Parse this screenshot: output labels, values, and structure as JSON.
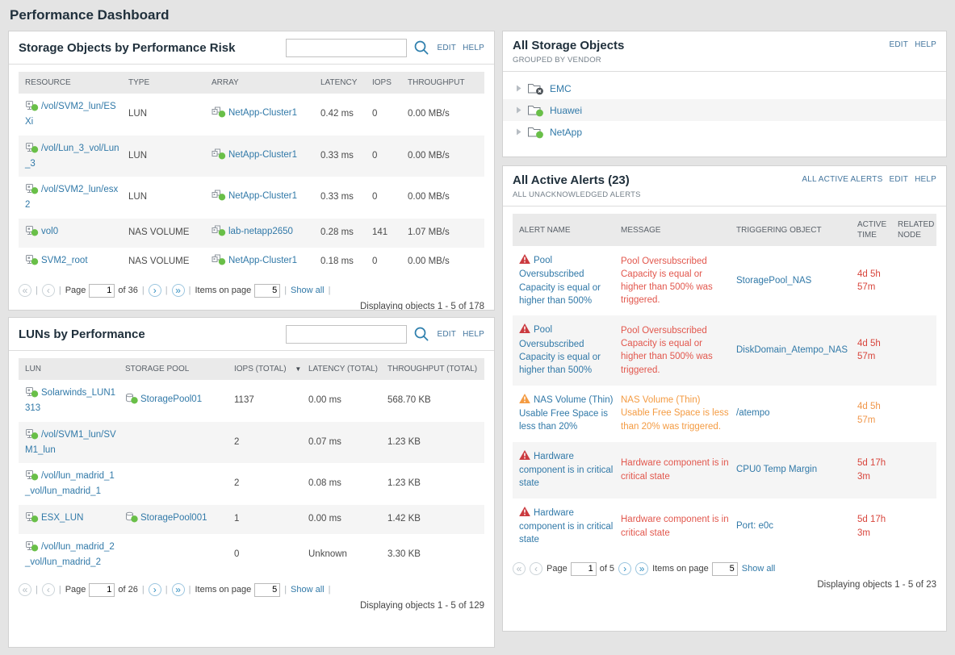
{
  "page": {
    "title": "Performance Dashboard"
  },
  "colors": {
    "up": "#69bf48",
    "down": "#4b5157",
    "critical_icon": "#cb3a3f",
    "warning_icon": "#f49b42",
    "critical_text": "#e2574d",
    "warning_text": "#f49b42",
    "critical_time": "#d8453c",
    "warning_time": "#f0964a",
    "link": "#3179a8"
  },
  "pager_icons": {
    "first": "«",
    "prev": "‹",
    "next": "›",
    "last": "»"
  },
  "panels": {
    "risk": {
      "title": "Storage Objects by Performance Risk",
      "edit": "EDIT",
      "help": "HELP",
      "search_value": "",
      "columns": [
        "RESOURCE",
        "TYPE",
        "ARRAY",
        "LATENCY",
        "IOPS",
        "THROUGHPUT"
      ],
      "rows": [
        {
          "resource": "/vol/SVM2_lun/ESXi",
          "type": "LUN",
          "array": "NetApp-Cluster1",
          "latency": "0.42 ms",
          "iops": "0",
          "throughput": "0.00 MB/s"
        },
        {
          "resource": "/vol/Lun_3_vol/Lun_3",
          "type": "LUN",
          "array": "NetApp-Cluster1",
          "latency": "0.33 ms",
          "iops": "0",
          "throughput": "0.00 MB/s"
        },
        {
          "resource": "/vol/SVM2_lun/esx2",
          "type": "LUN",
          "array": "NetApp-Cluster1",
          "latency": "0.33 ms",
          "iops": "0",
          "throughput": "0.00 MB/s"
        },
        {
          "resource": "vol0",
          "type": "NAS VOLUME",
          "array": "lab-netapp2650",
          "latency": "0.28 ms",
          "iops": "141",
          "throughput": "1.07 MB/s"
        },
        {
          "resource": "SVM2_root",
          "type": "NAS VOLUME",
          "array": "NetApp-Cluster1",
          "latency": "0.18 ms",
          "iops": "0",
          "throughput": "0.00 MB/s"
        }
      ],
      "pager": {
        "sep": "|",
        "piped": true,
        "page_label": "Page",
        "page_value": "1",
        "of_label": "of 36",
        "items_label": "Items on page",
        "items_value": "5",
        "show_all": "Show all"
      },
      "displaying": "Displaying objects 1 - 5 of 178"
    },
    "luns": {
      "title": "LUNs by Performance",
      "edit": "EDIT",
      "help": "HELP",
      "search_value": "",
      "columns": [
        "LUN",
        "STORAGE POOL",
        "IOPS (TOTAL)",
        "LATENCY (TOTAL)",
        "THROUGHPUT (TOTAL)"
      ],
      "sort_arrow": "▼",
      "rows": [
        {
          "lun": "Solarwinds_LUN1313",
          "pool": "StoragePool01",
          "iops": "1137",
          "latency": "0.00 ms",
          "throughput": "568.70 KB"
        },
        {
          "lun": "/vol/SVM1_lun/SVM1_lun",
          "pool": "",
          "iops": "2",
          "latency": "0.07 ms",
          "throughput": "1.23 KB"
        },
        {
          "lun": "/vol/lun_madrid_1_vol/lun_madrid_1",
          "pool": "",
          "iops": "2",
          "latency": "0.08 ms",
          "throughput": "1.23 KB"
        },
        {
          "lun": "ESX_LUN",
          "pool": "StoragePool001",
          "iops": "1",
          "latency": "0.00 ms",
          "throughput": "1.42 KB"
        },
        {
          "lun": "/vol/lun_madrid_2_vol/lun_madrid_2",
          "pool": "",
          "iops": "0",
          "latency": "Unknown",
          "throughput": "3.30 KB"
        }
      ],
      "pager": {
        "sep": "|",
        "piped": true,
        "page_label": "Page",
        "page_value": "1",
        "of_label": "of 26",
        "items_label": "Items on page",
        "items_value": "5",
        "show_all": "Show all"
      },
      "displaying": "Displaying objects 1 - 5 of 129"
    },
    "vendors": {
      "title": "All Storage Objects",
      "subtitle": "GROUPED BY VENDOR",
      "edit": "EDIT",
      "help": "HELP",
      "items": [
        {
          "label": "EMC",
          "status": "down"
        },
        {
          "label": "Huawei",
          "status": "up"
        },
        {
          "label": "NetApp",
          "status": "up"
        }
      ]
    },
    "alerts": {
      "title": "All Active Alerts (23)",
      "subtitle": "ALL UNACKNOWLEDGED ALERTS",
      "all_active": "ALL ACTIVE ALERTS",
      "edit": "EDIT",
      "help": "HELP",
      "columns": [
        "ALERT NAME",
        "MESSAGE",
        "TRIGGERING OBJECT",
        "ACTIVE TIME",
        "RELATED NODE"
      ],
      "rows": [
        {
          "severity": "critical",
          "name": "Pool Oversubscribed Capacity is equal or higher than 500%",
          "message": "Pool Oversubscribed Capacity is equal or higher than 500% was triggered.",
          "trigger": "StoragePool_NAS",
          "active_time": "4d 5h 57m",
          "related_node": ""
        },
        {
          "severity": "critical",
          "name": "Pool Oversubscribed Capacity is equal or higher than 500%",
          "message": "Pool Oversubscribed Capacity is equal or higher than 500% was triggered.",
          "trigger": "DiskDomain_Atempo_NAS",
          "active_time": "4d 5h 57m",
          "related_node": ""
        },
        {
          "severity": "warning",
          "name": "NAS Volume (Thin) Usable Free Space is less than 20%",
          "message": "NAS Volume (Thin) Usable Free Space is less than 20% was triggered.",
          "trigger": "/atempo",
          "active_time": "4d 5h 57m",
          "related_node": ""
        },
        {
          "severity": "critical",
          "name": "Hardware component is in critical state",
          "message": "Hardware component is in critical state",
          "trigger": "CPU0 Temp Margin",
          "active_time": "5d 17h 3m",
          "related_node": ""
        },
        {
          "severity": "critical",
          "name": "Hardware component is in critical state",
          "message": "Hardware component is in critical state",
          "trigger": "Port: e0c",
          "active_time": "5d 17h 3m",
          "related_node": ""
        }
      ],
      "pager": {
        "sep": "|",
        "piped": false,
        "page_label": "Page",
        "page_value": "1",
        "of_label": "of 5",
        "items_label": "Items on page",
        "items_value": "5",
        "show_all": "Show all"
      },
      "displaying": "Displaying objects 1 - 5 of 23"
    }
  }
}
